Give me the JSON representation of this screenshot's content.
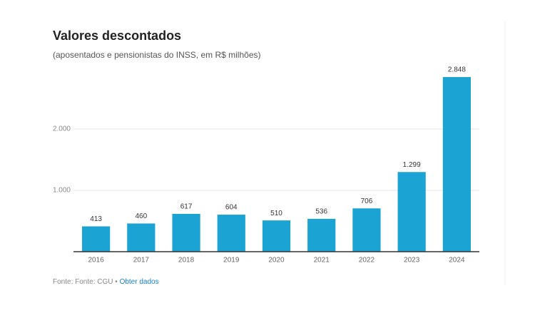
{
  "chart_data": {
    "type": "bar",
    "title": "Valores descontados",
    "subtitle": "(aposentados e pensionistas do INSS, em R$ milhões)",
    "categories": [
      "2016",
      "2017",
      "2018",
      "2019",
      "2020",
      "2021",
      "2022",
      "2023",
      "2024"
    ],
    "values": [
      413,
      460,
      617,
      604,
      510,
      536,
      706,
      1299,
      2848
    ],
    "value_labels": [
      "413",
      "460",
      "617",
      "604",
      "510",
      "536",
      "706",
      "1.299",
      "2.848"
    ],
    "color": "#1ba3d3",
    "ylim": [
      0,
      3000
    ],
    "yticks": [
      {
        "value": 1000,
        "label": "1.000"
      },
      {
        "value": 2000,
        "label": "2.000"
      }
    ],
    "grid": true,
    "source": "Fonte: Fonte: CGU",
    "separator": "•",
    "link": "Obter dados"
  }
}
